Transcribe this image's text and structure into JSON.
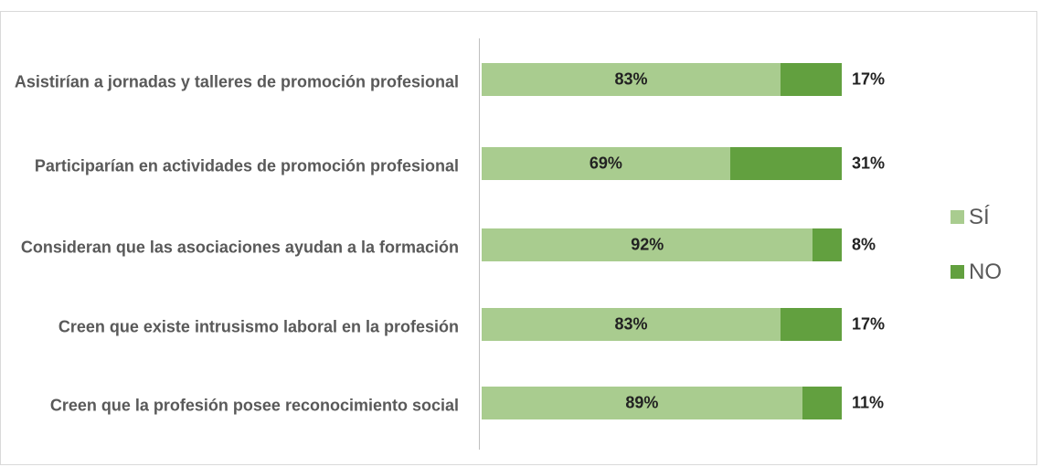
{
  "chart_data": {
    "type": "stacked_barh",
    "categories": [
      "Asistirían a jornadas y talleres de promoción profesional",
      "Participarían en actividades de promoción profesional",
      "Consideran que las asociaciones ayudan a la formación",
      "Creen que existe intrusismo laboral en la profesión",
      "Creen que la profesión posee reconocimiento social"
    ],
    "series": [
      {
        "name": "SÍ",
        "color": "#a9cc8f",
        "values": [
          83,
          69,
          92,
          83,
          89
        ],
        "value_labels": [
          "83%",
          "69%",
          "92%",
          "83%",
          "89%"
        ]
      },
      {
        "name": "NO",
        "color": "#62a03f",
        "values": [
          17,
          31,
          8,
          17,
          11
        ],
        "value_labels": [
          "17%",
          "31%",
          "8%",
          "17%",
          "11%"
        ]
      }
    ],
    "xlim": [
      0,
      100
    ],
    "legend": "right"
  }
}
